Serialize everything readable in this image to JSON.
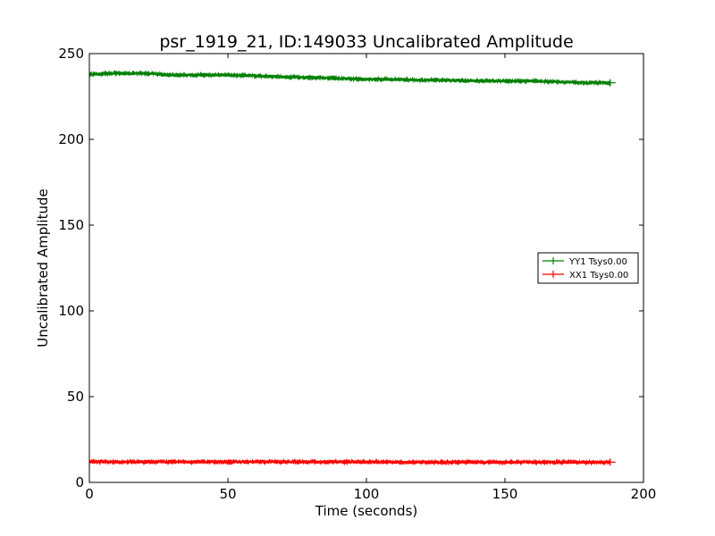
{
  "chart_data": {
    "type": "line",
    "title": "psr_1919_21, ID:149033 Uncalibrated Amplitude",
    "xlabel": "Time (seconds)",
    "ylabel": "Uncalibrated Amplitude",
    "xlim": [
      0,
      200
    ],
    "ylim": [
      0,
      250
    ],
    "x_ticks": [
      0,
      50,
      100,
      150,
      200
    ],
    "y_ticks": [
      0,
      50,
      100,
      150,
      200,
      250
    ],
    "grid": false,
    "legend_position": "center-right",
    "series": [
      {
        "name": "YY1 Tsys0.00",
        "color": "#008000",
        "x": [
          0,
          10,
          20,
          30,
          40,
          50,
          60,
          70,
          80,
          90,
          100,
          110,
          120,
          130,
          140,
          150,
          160,
          170,
          180,
          188
        ],
        "y": [
          238,
          238.5,
          238.5,
          237.5,
          237.5,
          237.5,
          237,
          236.5,
          236,
          235.5,
          235,
          235,
          234.5,
          234.5,
          234,
          234,
          234,
          233.5,
          233,
          233
        ]
      },
      {
        "name": "XX1 Tsys0.00",
        "color": "#ff0000",
        "x": [
          0,
          10,
          20,
          30,
          40,
          50,
          60,
          70,
          80,
          90,
          100,
          110,
          120,
          130,
          140,
          150,
          160,
          170,
          180,
          188
        ],
        "y": [
          12,
          12,
          12,
          12,
          12,
          12,
          12,
          12,
          12,
          12,
          12,
          11.8,
          11.8,
          11.8,
          11.8,
          11.8,
          11.8,
          11.8,
          11.8,
          11.8
        ]
      }
    ]
  }
}
